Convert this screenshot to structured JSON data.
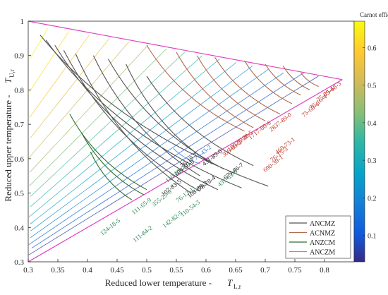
{
  "chart_data": {
    "type": "line",
    "xlabel": "Reduced lower temperature -",
    "xlabel_symbol": "T",
    "xlabel_sub": "L,r",
    "ylabel": "Reduced upper temperature -",
    "ylabel_symbol": "T",
    "ylabel_sub": "U,r",
    "xlim": [
      0.3,
      0.85
    ],
    "ylim": [
      0.3,
      1.0
    ],
    "xticks": [
      "0.3",
      "0.35",
      "0.4",
      "0.45",
      "0.5",
      "0.55",
      "0.6",
      "0.65",
      "0.7",
      "0.75",
      "0.8"
    ],
    "yticks": [
      "0.3",
      "0.4",
      "0.5",
      "0.6",
      "0.7",
      "0.8",
      "0.9",
      "1"
    ],
    "colorbar": {
      "title": "Carnot efficiency",
      "min": 0.03,
      "max": 0.67,
      "ticks": [
        "0.1",
        "0.2",
        "0.3",
        "0.4",
        "0.5",
        "0.6"
      ],
      "colormap": "parula"
    },
    "boundaries": [
      {
        "kind": "upper",
        "from": [
          0.3,
          1.0
        ],
        "to": [
          0.83,
          0.83
        ],
        "color": "#e040c0"
      },
      {
        "kind": "diagonal",
        "from": [
          0.3,
          0.3
        ],
        "to": [
          0.83,
          0.83
        ],
        "color": "#e040c0"
      }
    ],
    "legend": {
      "position": "bottom-right",
      "entries": [
        {
          "name": "ANCMZ",
          "color": "#555555"
        },
        {
          "name": "ACNMZ",
          "color": "#b06a50"
        },
        {
          "name": "ANZCM",
          "color": "#2f6f2f"
        },
        {
          "name": "ANCZM",
          "color": "#5f9fe0"
        }
      ]
    },
    "series": [
      {
        "name": "ANCMZ",
        "curves": [
          {
            "x0": 0.32,
            "y0": 0.96,
            "x1": 0.705,
            "y1": 0.52
          },
          {
            "x0": 0.33,
            "y0": 0.945,
            "x1": 0.66,
            "y1": 0.515
          },
          {
            "x0": 0.345,
            "y0": 0.93,
            "x1": 0.62,
            "y1": 0.51
          },
          {
            "x0": 0.36,
            "y0": 0.915,
            "x1": 0.59,
            "y1": 0.505
          },
          {
            "x0": 0.38,
            "y0": 0.905,
            "x1": 0.575,
            "y1": 0.5
          },
          {
            "x0": 0.41,
            "y0": 0.9,
            "x1": 0.59,
            "y1": 0.55
          },
          {
            "x0": 0.435,
            "y0": 0.89,
            "x1": 0.63,
            "y1": 0.57
          },
          {
            "x0": 0.465,
            "y0": 0.875,
            "x1": 0.61,
            "y1": 0.585
          },
          {
            "x0": 0.5,
            "y0": 0.84,
            "x1": 0.68,
            "y1": 0.58
          }
        ]
      },
      {
        "name": "ACNMZ",
        "curves": [
          {
            "x0": 0.5,
            "y0": 0.93,
            "x1": 0.665,
            "y1": 0.68
          },
          {
            "x0": 0.55,
            "y0": 0.91,
            "x1": 0.68,
            "y1": 0.69
          },
          {
            "x0": 0.585,
            "y0": 0.9,
            "x1": 0.7,
            "y1": 0.71
          },
          {
            "x0": 0.615,
            "y0": 0.895,
            "x1": 0.725,
            "y1": 0.73
          },
          {
            "x0": 0.665,
            "y0": 0.885,
            "x1": 0.745,
            "y1": 0.76
          },
          {
            "x0": 0.7,
            "y0": 0.875,
            "x1": 0.76,
            "y1": 0.785
          },
          {
            "x0": 0.73,
            "y0": 0.87,
            "x1": 0.775,
            "y1": 0.8
          },
          {
            "x0": 0.76,
            "y0": 0.85,
            "x1": 0.79,
            "y1": 0.81
          }
        ]
      },
      {
        "name": "ANZCM",
        "curves": [
          {
            "x0": 0.37,
            "y0": 0.73,
            "x1": 0.5,
            "y1": 0.51
          },
          {
            "x0": 0.39,
            "y0": 0.675,
            "x1": 0.495,
            "y1": 0.495
          },
          {
            "x0": 0.405,
            "y0": 0.62,
            "x1": 0.475,
            "y1": 0.48
          }
        ]
      },
      {
        "name": "ANCZM",
        "curves": [
          {
            "x0": 0.545,
            "y0": 0.63,
            "x1": 0.59,
            "y1": 0.585
          }
        ]
      }
    ],
    "fluid_labels": [
      {
        "text": "75-68-3",
        "x": 0.802,
        "y": 0.78,
        "color": "#c0392b"
      },
      {
        "text": "75-69-4",
        "x": 0.79,
        "y": 0.765,
        "color": "#c0392b"
      },
      {
        "text": "76-16-4",
        "x": 0.778,
        "y": 0.742,
        "color": "#c0392b"
      },
      {
        "text": "75-69-4",
        "x": 0.765,
        "y": 0.72,
        "color": "#c0392b"
      },
      {
        "text": "2837-89-0",
        "x": 0.71,
        "y": 0.678,
        "color": "#c0392b"
      },
      {
        "text": "1717-00-6",
        "x": 0.675,
        "y": 0.655,
        "color": "#c0392b"
      },
      {
        "text": "75-28-5",
        "x": 0.653,
        "y": 0.638,
        "color": "#c0392b"
      },
      {
        "text": "106-97-8",
        "x": 0.64,
        "y": 0.62,
        "color": "#c0392b"
      },
      {
        "text": "460-73-1",
        "x": 0.72,
        "y": 0.612,
        "color": "#c0392b"
      },
      {
        "text": "306-83-2",
        "x": 0.63,
        "y": 0.604,
        "color": "#c0392b"
      },
      {
        "text": "76-15-3",
        "x": 0.712,
        "y": 0.59,
        "color": "#c0392b"
      },
      {
        "text": "71-43-2",
        "x": 0.583,
        "y": 0.595,
        "color": "#3a7ad8"
      },
      {
        "text": "431-89-0",
        "x": 0.597,
        "y": 0.578,
        "color": "#222222"
      },
      {
        "text": "690-39-1",
        "x": 0.7,
        "y": 0.56,
        "color": "#c0392b"
      },
      {
        "text": "76-19-7",
        "x": 0.56,
        "y": 0.573,
        "color": "#222222"
      },
      {
        "text": "679-86-7",
        "x": 0.633,
        "y": 0.538,
        "color": "#222222"
      },
      {
        "text": "431-63-0",
        "x": 0.623,
        "y": 0.518,
        "color": "#2e8b57"
      },
      {
        "text": "109-66-0",
        "x": 0.55,
        "y": 0.548,
        "color": "#222222"
      },
      {
        "text": "78-78-4",
        "x": 0.59,
        "y": 0.506,
        "color": "#222222"
      },
      {
        "text": "110-82-7",
        "x": 0.535,
        "y": 0.53,
        "color": "#2e8b57"
      },
      {
        "text": "107-83-5",
        "x": 0.528,
        "y": 0.49,
        "color": "#222222"
      },
      {
        "text": "108-88-3",
        "x": 0.572,
        "y": 0.485,
        "color": "#222222"
      },
      {
        "text": "76-13-1",
        "x": 0.553,
        "y": 0.472,
        "color": "#2e8b57"
      },
      {
        "text": "355-25-9",
        "x": 0.512,
        "y": 0.46,
        "color": "#2e8b57"
      },
      {
        "text": "110-54-3",
        "x": 0.56,
        "y": 0.43,
        "color": "#2e8b57"
      },
      {
        "text": "111-65-9",
        "x": 0.478,
        "y": 0.437,
        "color": "#2e8b57"
      },
      {
        "text": "142-82-5",
        "x": 0.53,
        "y": 0.398,
        "color": "#2e8b57"
      },
      {
        "text": "124-18-5",
        "x": 0.425,
        "y": 0.376,
        "color": "#2e8b57"
      },
      {
        "text": "111-84-2",
        "x": 0.48,
        "y": 0.356,
        "color": "#2e8b57"
      }
    ]
  }
}
